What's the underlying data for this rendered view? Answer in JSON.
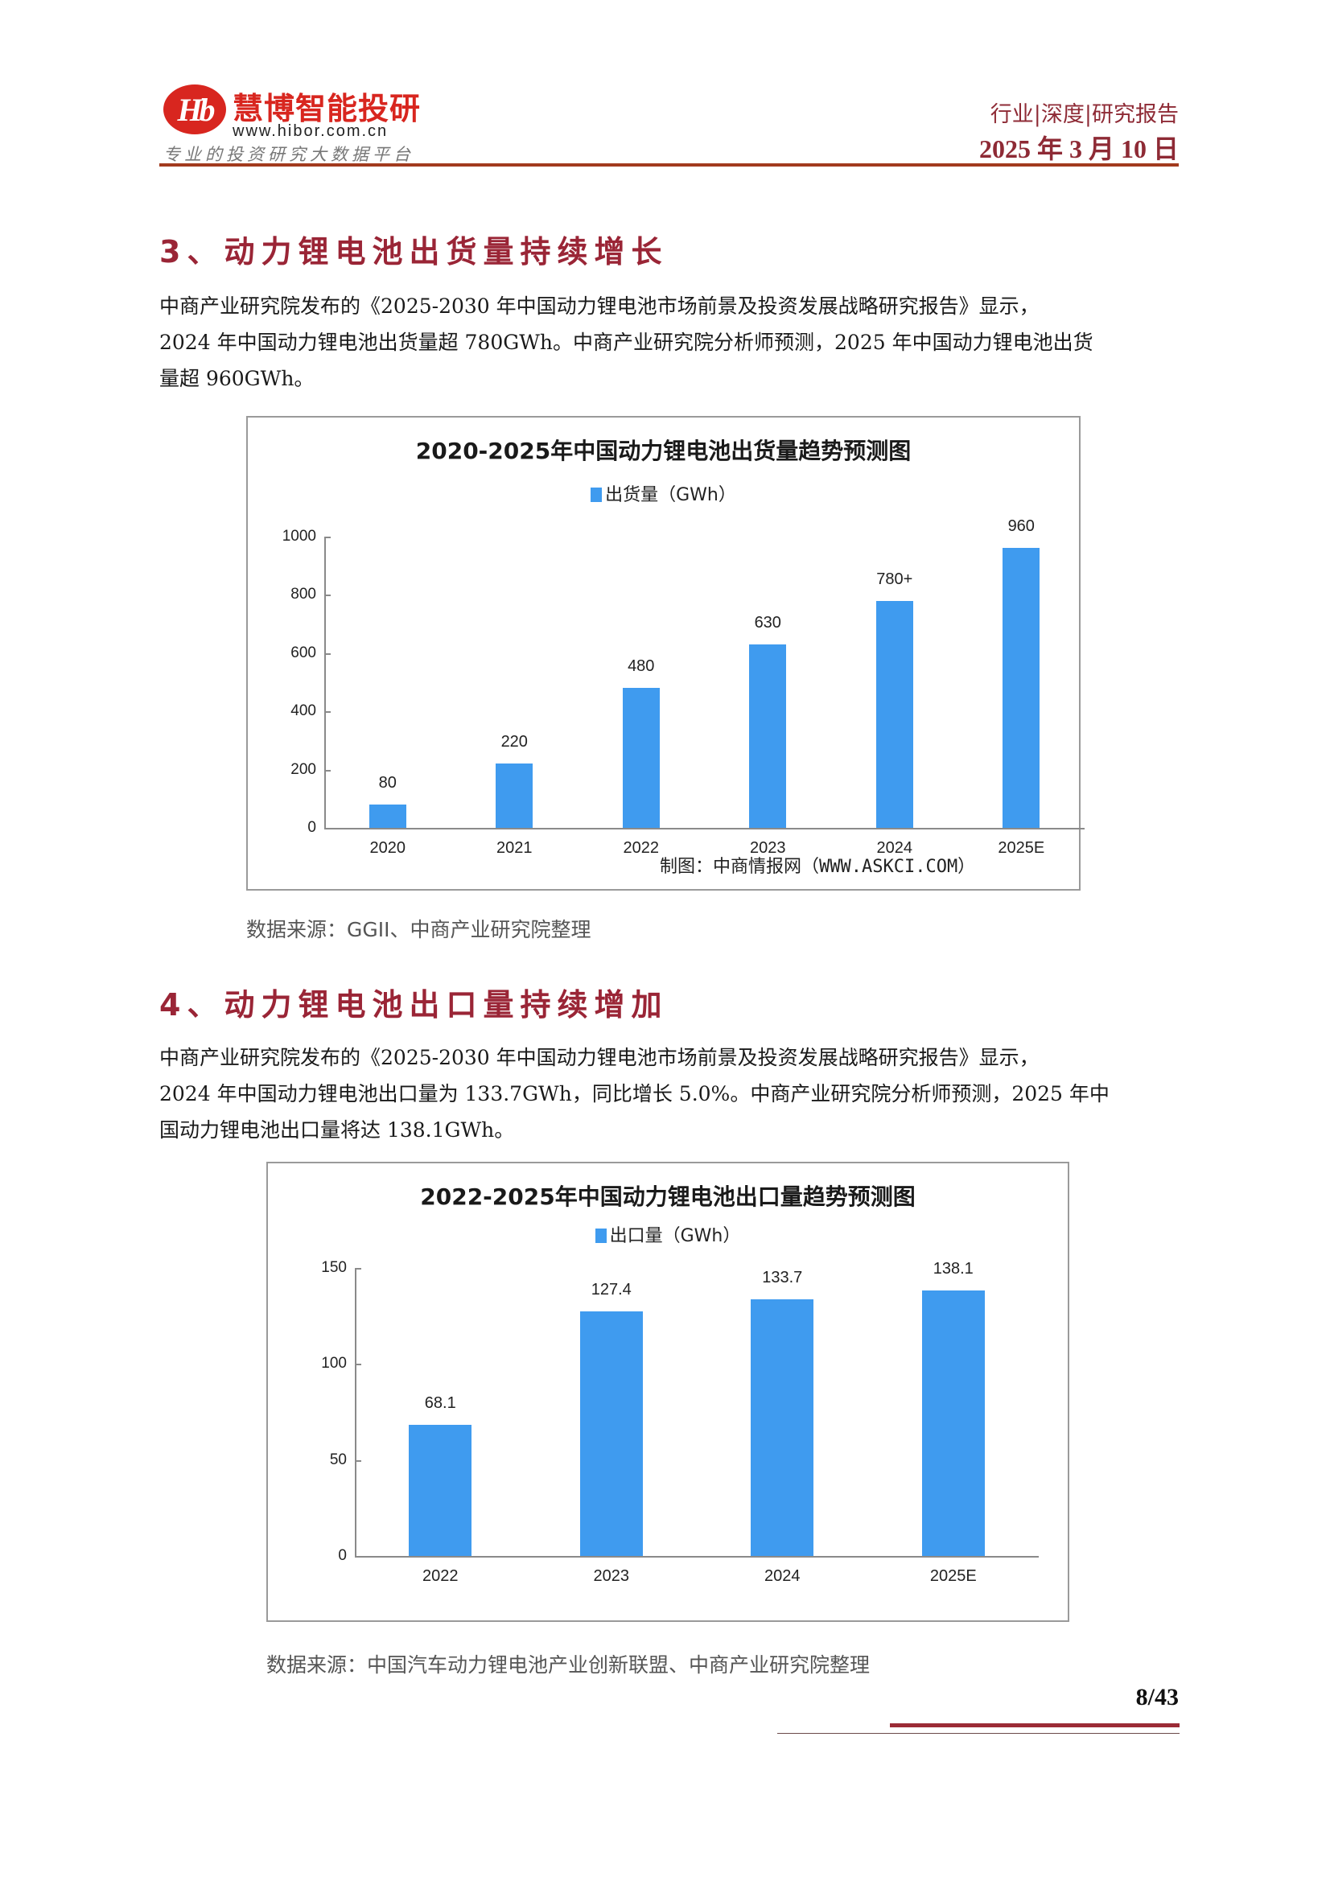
{
  "header": {
    "logo_mark": "Hb",
    "logo_name": "慧博智能投研",
    "logo_url": "www.hibor.com.cn",
    "logo_slogan": "专业的投资研究大数据平台",
    "report_type": "行业|深度|研究报告",
    "report_date": "2025 年 3 月 10 日"
  },
  "sections": [
    {
      "title": "3、动力锂电池出货量持续增长",
      "paragraph_lines": [
        "中商产业研究院发布的《2025-2030 年中国动力锂电池市场前景及投资发展战略研究报告》显示，",
        "2024 年中国动力锂电池出货量超 780GWh。中商产业研究院分析师预测，2025 年中国动力锂电池出货",
        "量超 960GWh。"
      ],
      "source": "数据来源：GGII、中商产业研究院整理"
    },
    {
      "title": "4、动力锂电池出口量持续增加",
      "paragraph_lines": [
        "中商产业研究院发布的《2025-2030 年中国动力锂电池市场前景及投资发展战略研究报告》显示，",
        "2024 年中国动力锂电池出口量为 133.7GWh，同比增长 5.0%。中商产业研究院分析师预测，2025 年中",
        "国动力锂电池出口量将达 138.1GWh。"
      ],
      "source": "数据来源：中国汽车动力锂电池产业创新联盟、中商产业研究院整理"
    }
  ],
  "chart_data": [
    {
      "type": "bar",
      "title": "2020-2025年中国动力锂电池出货量趋势预测图",
      "legend": [
        "出货量（GWh）"
      ],
      "legend_position": "top",
      "categories": [
        "2020",
        "2021",
        "2022",
        "2023",
        "2024",
        "2025E"
      ],
      "values": [
        80,
        220,
        480,
        630,
        780,
        960
      ],
      "data_labels": [
        "80",
        "220",
        "480",
        "630",
        "780+",
        "960"
      ],
      "yticks": [
        "0",
        "200",
        "400",
        "600",
        "800",
        "1000"
      ],
      "ylim": [
        0,
        1000
      ],
      "xlabel": "",
      "ylabel": "",
      "grid": false,
      "bar_color": "#3f9bef",
      "credit": "制图：中商情报网（WWW.ASKCI.COM）"
    },
    {
      "type": "bar",
      "title": "2022-2025年中国动力锂电池出口量趋势预测图",
      "legend": [
        "出口量（GWh）"
      ],
      "legend_position": "top",
      "categories": [
        "2022",
        "2023",
        "2024",
        "2025E"
      ],
      "values": [
        68.1,
        127.4,
        133.7,
        138.1
      ],
      "data_labels": [
        "68.1",
        "127.4",
        "133.7",
        "138.1"
      ],
      "yticks": [
        "0",
        "50",
        "100",
        "150"
      ],
      "ylim": [
        0,
        150
      ],
      "xlabel": "",
      "ylabel": "",
      "grid": false,
      "bar_color": "#3f9bef"
    }
  ],
  "footer": {
    "page_number": "8/43"
  }
}
